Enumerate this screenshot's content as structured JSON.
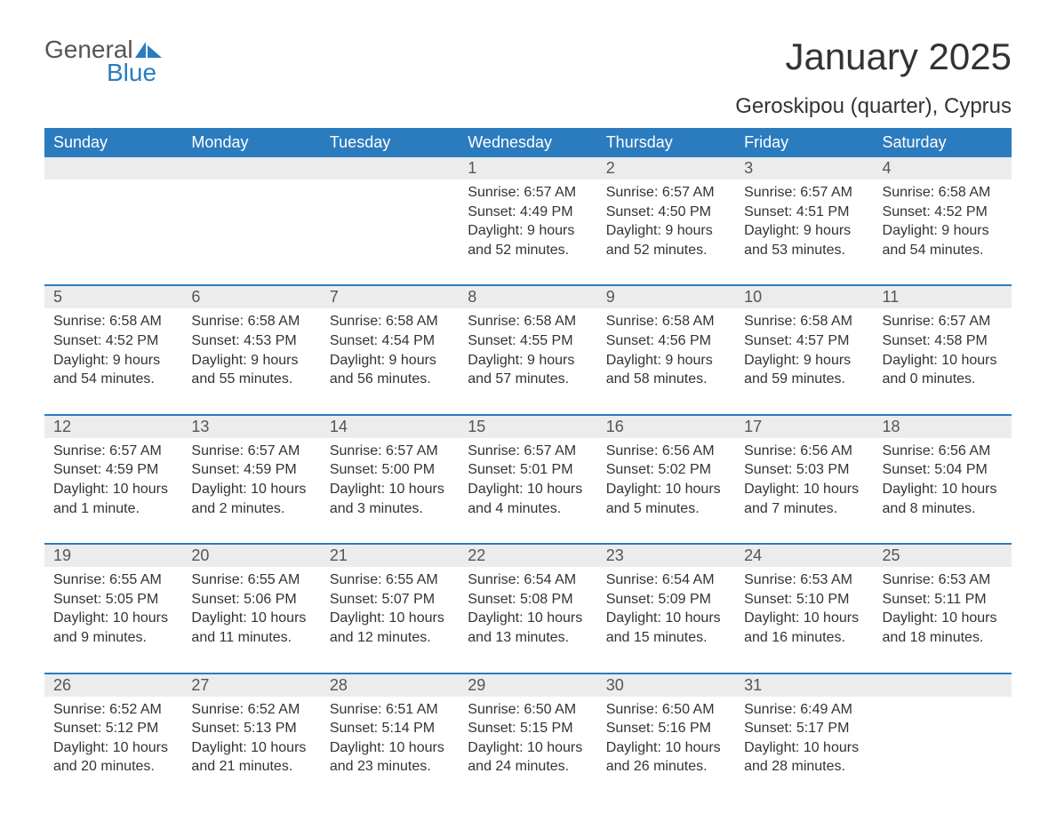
{
  "logo": {
    "text1": "General",
    "text2": "Blue",
    "color1": "#555555",
    "color2": "#2b7bbf"
  },
  "title": "January 2025",
  "location": "Geroskipou (quarter), Cyprus",
  "theme": {
    "header_bg": "#2b7bbf",
    "header_text": "#ffffff",
    "daynum_bg": "#ececec",
    "daynum_text": "#555555",
    "body_text": "#333333",
    "rule_color": "#2b7bbf",
    "page_bg": "#ffffff",
    "title_fontsize": 42,
    "header_fontsize": 18,
    "cell_fontsize": 16
  },
  "weekdays": [
    "Sunday",
    "Monday",
    "Tuesday",
    "Wednesday",
    "Thursday",
    "Friday",
    "Saturday"
  ],
  "weeks": [
    [
      null,
      null,
      null,
      {
        "n": "1",
        "sunrise": "6:57 AM",
        "sunset": "4:49 PM",
        "daylight": "9 hours and 52 minutes."
      },
      {
        "n": "2",
        "sunrise": "6:57 AM",
        "sunset": "4:50 PM",
        "daylight": "9 hours and 52 minutes."
      },
      {
        "n": "3",
        "sunrise": "6:57 AM",
        "sunset": "4:51 PM",
        "daylight": "9 hours and 53 minutes."
      },
      {
        "n": "4",
        "sunrise": "6:58 AM",
        "sunset": "4:52 PM",
        "daylight": "9 hours and 54 minutes."
      }
    ],
    [
      {
        "n": "5",
        "sunrise": "6:58 AM",
        "sunset": "4:52 PM",
        "daylight": "9 hours and 54 minutes."
      },
      {
        "n": "6",
        "sunrise": "6:58 AM",
        "sunset": "4:53 PM",
        "daylight": "9 hours and 55 minutes."
      },
      {
        "n": "7",
        "sunrise": "6:58 AM",
        "sunset": "4:54 PM",
        "daylight": "9 hours and 56 minutes."
      },
      {
        "n": "8",
        "sunrise": "6:58 AM",
        "sunset": "4:55 PM",
        "daylight": "9 hours and 57 minutes."
      },
      {
        "n": "9",
        "sunrise": "6:58 AM",
        "sunset": "4:56 PM",
        "daylight": "9 hours and 58 minutes."
      },
      {
        "n": "10",
        "sunrise": "6:58 AM",
        "sunset": "4:57 PM",
        "daylight": "9 hours and 59 minutes."
      },
      {
        "n": "11",
        "sunrise": "6:57 AM",
        "sunset": "4:58 PM",
        "daylight": "10 hours and 0 minutes."
      }
    ],
    [
      {
        "n": "12",
        "sunrise": "6:57 AM",
        "sunset": "4:59 PM",
        "daylight": "10 hours and 1 minute."
      },
      {
        "n": "13",
        "sunrise": "6:57 AM",
        "sunset": "4:59 PM",
        "daylight": "10 hours and 2 minutes."
      },
      {
        "n": "14",
        "sunrise": "6:57 AM",
        "sunset": "5:00 PM",
        "daylight": "10 hours and 3 minutes."
      },
      {
        "n": "15",
        "sunrise": "6:57 AM",
        "sunset": "5:01 PM",
        "daylight": "10 hours and 4 minutes."
      },
      {
        "n": "16",
        "sunrise": "6:56 AM",
        "sunset": "5:02 PM",
        "daylight": "10 hours and 5 minutes."
      },
      {
        "n": "17",
        "sunrise": "6:56 AM",
        "sunset": "5:03 PM",
        "daylight": "10 hours and 7 minutes."
      },
      {
        "n": "18",
        "sunrise": "6:56 AM",
        "sunset": "5:04 PM",
        "daylight": "10 hours and 8 minutes."
      }
    ],
    [
      {
        "n": "19",
        "sunrise": "6:55 AM",
        "sunset": "5:05 PM",
        "daylight": "10 hours and 9 minutes."
      },
      {
        "n": "20",
        "sunrise": "6:55 AM",
        "sunset": "5:06 PM",
        "daylight": "10 hours and 11 minutes."
      },
      {
        "n": "21",
        "sunrise": "6:55 AM",
        "sunset": "5:07 PM",
        "daylight": "10 hours and 12 minutes."
      },
      {
        "n": "22",
        "sunrise": "6:54 AM",
        "sunset": "5:08 PM",
        "daylight": "10 hours and 13 minutes."
      },
      {
        "n": "23",
        "sunrise": "6:54 AM",
        "sunset": "5:09 PM",
        "daylight": "10 hours and 15 minutes."
      },
      {
        "n": "24",
        "sunrise": "6:53 AM",
        "sunset": "5:10 PM",
        "daylight": "10 hours and 16 minutes."
      },
      {
        "n": "25",
        "sunrise": "6:53 AM",
        "sunset": "5:11 PM",
        "daylight": "10 hours and 18 minutes."
      }
    ],
    [
      {
        "n": "26",
        "sunrise": "6:52 AM",
        "sunset": "5:12 PM",
        "daylight": "10 hours and 20 minutes."
      },
      {
        "n": "27",
        "sunrise": "6:52 AM",
        "sunset": "5:13 PM",
        "daylight": "10 hours and 21 minutes."
      },
      {
        "n": "28",
        "sunrise": "6:51 AM",
        "sunset": "5:14 PM",
        "daylight": "10 hours and 23 minutes."
      },
      {
        "n": "29",
        "sunrise": "6:50 AM",
        "sunset": "5:15 PM",
        "daylight": "10 hours and 24 minutes."
      },
      {
        "n": "30",
        "sunrise": "6:50 AM",
        "sunset": "5:16 PM",
        "daylight": "10 hours and 26 minutes."
      },
      {
        "n": "31",
        "sunrise": "6:49 AM",
        "sunset": "5:17 PM",
        "daylight": "10 hours and 28 minutes."
      },
      null
    ]
  ],
  "labels": {
    "sunrise": "Sunrise: ",
    "sunset": "Sunset: ",
    "daylight": "Daylight: "
  }
}
